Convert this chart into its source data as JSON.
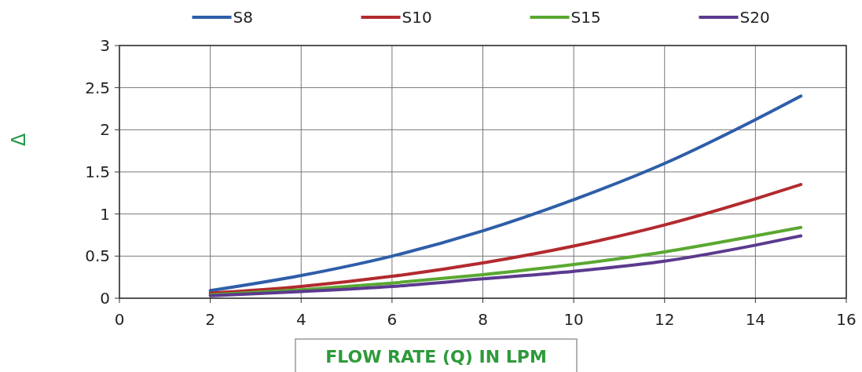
{
  "chart_data": {
    "type": "line",
    "xlabel": "FLOW RATE (Q) IN LPM",
    "ylabel": "Δ",
    "x": [
      2,
      4,
      6,
      8,
      10,
      12,
      14,
      15
    ],
    "series": [
      {
        "name": "S8",
        "color": "#2e5ea8",
        "values": [
          0.09,
          0.27,
          0.5,
          0.8,
          1.17,
          1.6,
          2.12,
          2.4
        ]
      },
      {
        "name": "S10",
        "color": "#b22a2e",
        "values": [
          0.06,
          0.14,
          0.26,
          0.42,
          0.62,
          0.87,
          1.18,
          1.35
        ]
      },
      {
        "name": "S15",
        "color": "#5aa832",
        "values": [
          0.04,
          0.1,
          0.18,
          0.28,
          0.4,
          0.55,
          0.74,
          0.84
        ]
      },
      {
        "name": "S20",
        "color": "#5b3a8e",
        "values": [
          0.03,
          0.08,
          0.14,
          0.23,
          0.32,
          0.44,
          0.63,
          0.74
        ]
      }
    ],
    "xlim": [
      0,
      16
    ],
    "xticks": [
      0,
      2,
      4,
      6,
      8,
      10,
      12,
      14,
      16
    ],
    "ylim": [
      0,
      3
    ],
    "yticks": [
      0,
      0.5,
      1,
      1.5,
      2,
      2.5,
      3
    ],
    "grid": true,
    "legend": "top",
    "marker": "none",
    "line_style": "solid"
  }
}
